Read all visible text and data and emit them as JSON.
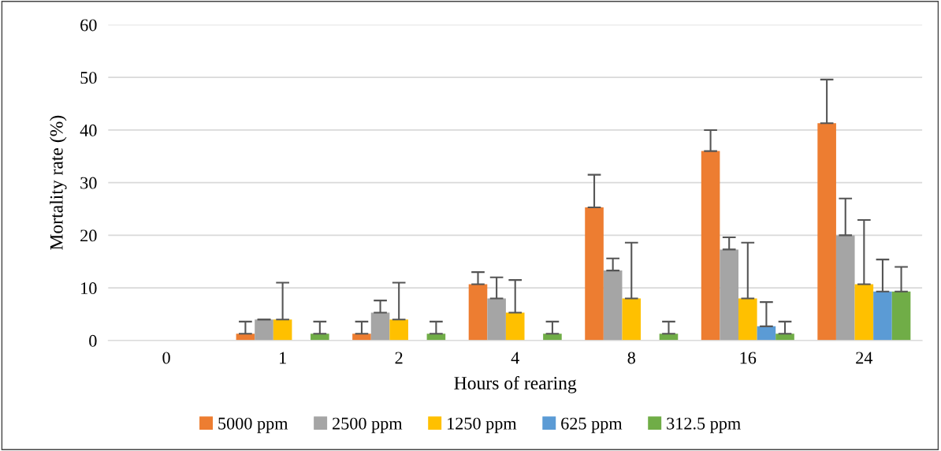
{
  "chart_data": {
    "type": "bar",
    "xlabel": "Hours of rearing",
    "ylabel": "Mortality rate (%)",
    "categories": [
      "0",
      "1",
      "2",
      "4",
      "8",
      "16",
      "24"
    ],
    "ylim": [
      0,
      60
    ],
    "yticks": [
      0,
      10,
      20,
      30,
      40,
      50,
      60
    ],
    "grid": "y",
    "legend": "bottom",
    "series": [
      {
        "name": "5000 ppm",
        "color": "#ed7d31",
        "values": [
          0,
          1.3,
          1.3,
          10.7,
          25.3,
          36.0,
          41.3
        ],
        "errors": [
          null,
          [
            1.3,
            3.6
          ],
          [
            1.3,
            3.6
          ],
          [
            10.7,
            13.0
          ],
          [
            25.3,
            31.5
          ],
          [
            36.0,
            40.0
          ],
          [
            41.3,
            49.6
          ]
        ]
      },
      {
        "name": "2500 ppm",
        "color": "#a5a5a5",
        "values": [
          0,
          4.0,
          5.3,
          8.0,
          13.3,
          17.3,
          20.0
        ],
        "errors": [
          null,
          [
            4.0,
            4.0
          ],
          [
            5.3,
            7.6
          ],
          [
            8.0,
            12.0
          ],
          [
            13.3,
            15.6
          ],
          [
            17.3,
            19.6
          ],
          [
            20.0,
            27.0
          ]
        ]
      },
      {
        "name": "1250 ppm",
        "color": "#ffc000",
        "values": [
          0,
          4.0,
          4.0,
          5.3,
          8.0,
          8.0,
          10.7
        ],
        "errors": [
          null,
          [
            4.0,
            11.0
          ],
          [
            4.0,
            11.0
          ],
          [
            5.3,
            11.5
          ],
          [
            8.0,
            18.6
          ],
          [
            8.0,
            18.6
          ],
          [
            10.7,
            22.9
          ]
        ]
      },
      {
        "name": "625 ppm",
        "color": "#5b9bd5",
        "values": [
          0,
          0,
          0,
          0,
          0,
          2.7,
          9.3
        ],
        "errors": [
          null,
          null,
          null,
          null,
          null,
          [
            2.7,
            7.3
          ],
          [
            9.3,
            15.4
          ]
        ]
      },
      {
        "name": "312.5 ppm",
        "color": "#70ad47",
        "values": [
          0,
          1.3,
          1.3,
          1.3,
          1.3,
          1.3,
          9.3
        ],
        "errors": [
          null,
          [
            1.3,
            3.6
          ],
          [
            1.3,
            3.6
          ],
          [
            1.3,
            3.6
          ],
          [
            1.3,
            3.6
          ],
          [
            1.3,
            3.6
          ],
          [
            9.3,
            14.0
          ]
        ]
      }
    ]
  }
}
